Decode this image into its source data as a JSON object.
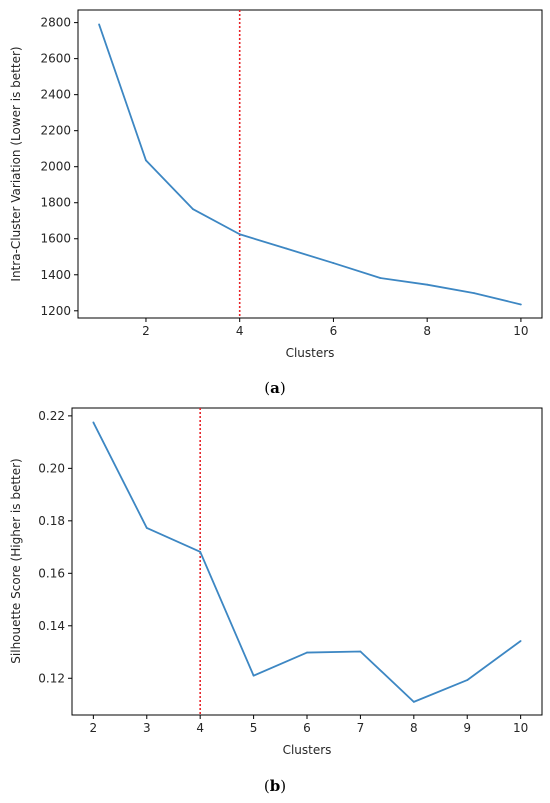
{
  "chart_data": [
    {
      "type": "line",
      "caption_letter": "a",
      "xlabel": "Clusters",
      "ylabel": "Intra-Cluster Variation (Lower is better)",
      "xlim": [
        0.55,
        10.45
      ],
      "ylim": [
        1160,
        2870
      ],
      "xticks": [
        2,
        4,
        6,
        8,
        10
      ],
      "yticks": [
        1200,
        1400,
        1600,
        1800,
        2000,
        2200,
        2400,
        2600,
        2800
      ],
      "x": [
        1,
        2,
        3,
        4,
        5,
        6,
        7,
        8,
        9,
        10
      ],
      "series": [
        {
          "values": [
            2790,
            2035,
            1765,
            1625,
            1545,
            1465,
            1382,
            1345,
            1298,
            1235
          ],
          "color": "#3d87c3"
        }
      ],
      "vline": {
        "x": 4,
        "color": "#e8242a",
        "style": "dotted"
      },
      "grid": false
    },
    {
      "type": "line",
      "caption_letter": "b",
      "xlabel": "Clusters",
      "ylabel": "Silhouette Score (Higher is better)",
      "xlim": [
        1.6,
        10.4
      ],
      "ylim": [
        0.106,
        0.223
      ],
      "xticks": [
        2,
        3,
        4,
        5,
        6,
        7,
        8,
        9,
        10
      ],
      "yticks": [
        0.12,
        0.14,
        0.16,
        0.18,
        0.2,
        0.22
      ],
      "ytick_decimals": 2,
      "x": [
        2,
        3,
        4,
        5,
        6,
        7,
        8,
        9,
        10
      ],
      "series": [
        {
          "values": [
            0.2175,
            0.1773,
            0.1682,
            0.121,
            0.1298,
            0.1302,
            0.111,
            0.1193,
            0.1342
          ],
          "color": "#3d87c3"
        }
      ],
      "vline": {
        "x": 4,
        "color": "#e8242a",
        "style": "dotted"
      },
      "grid": false
    }
  ]
}
